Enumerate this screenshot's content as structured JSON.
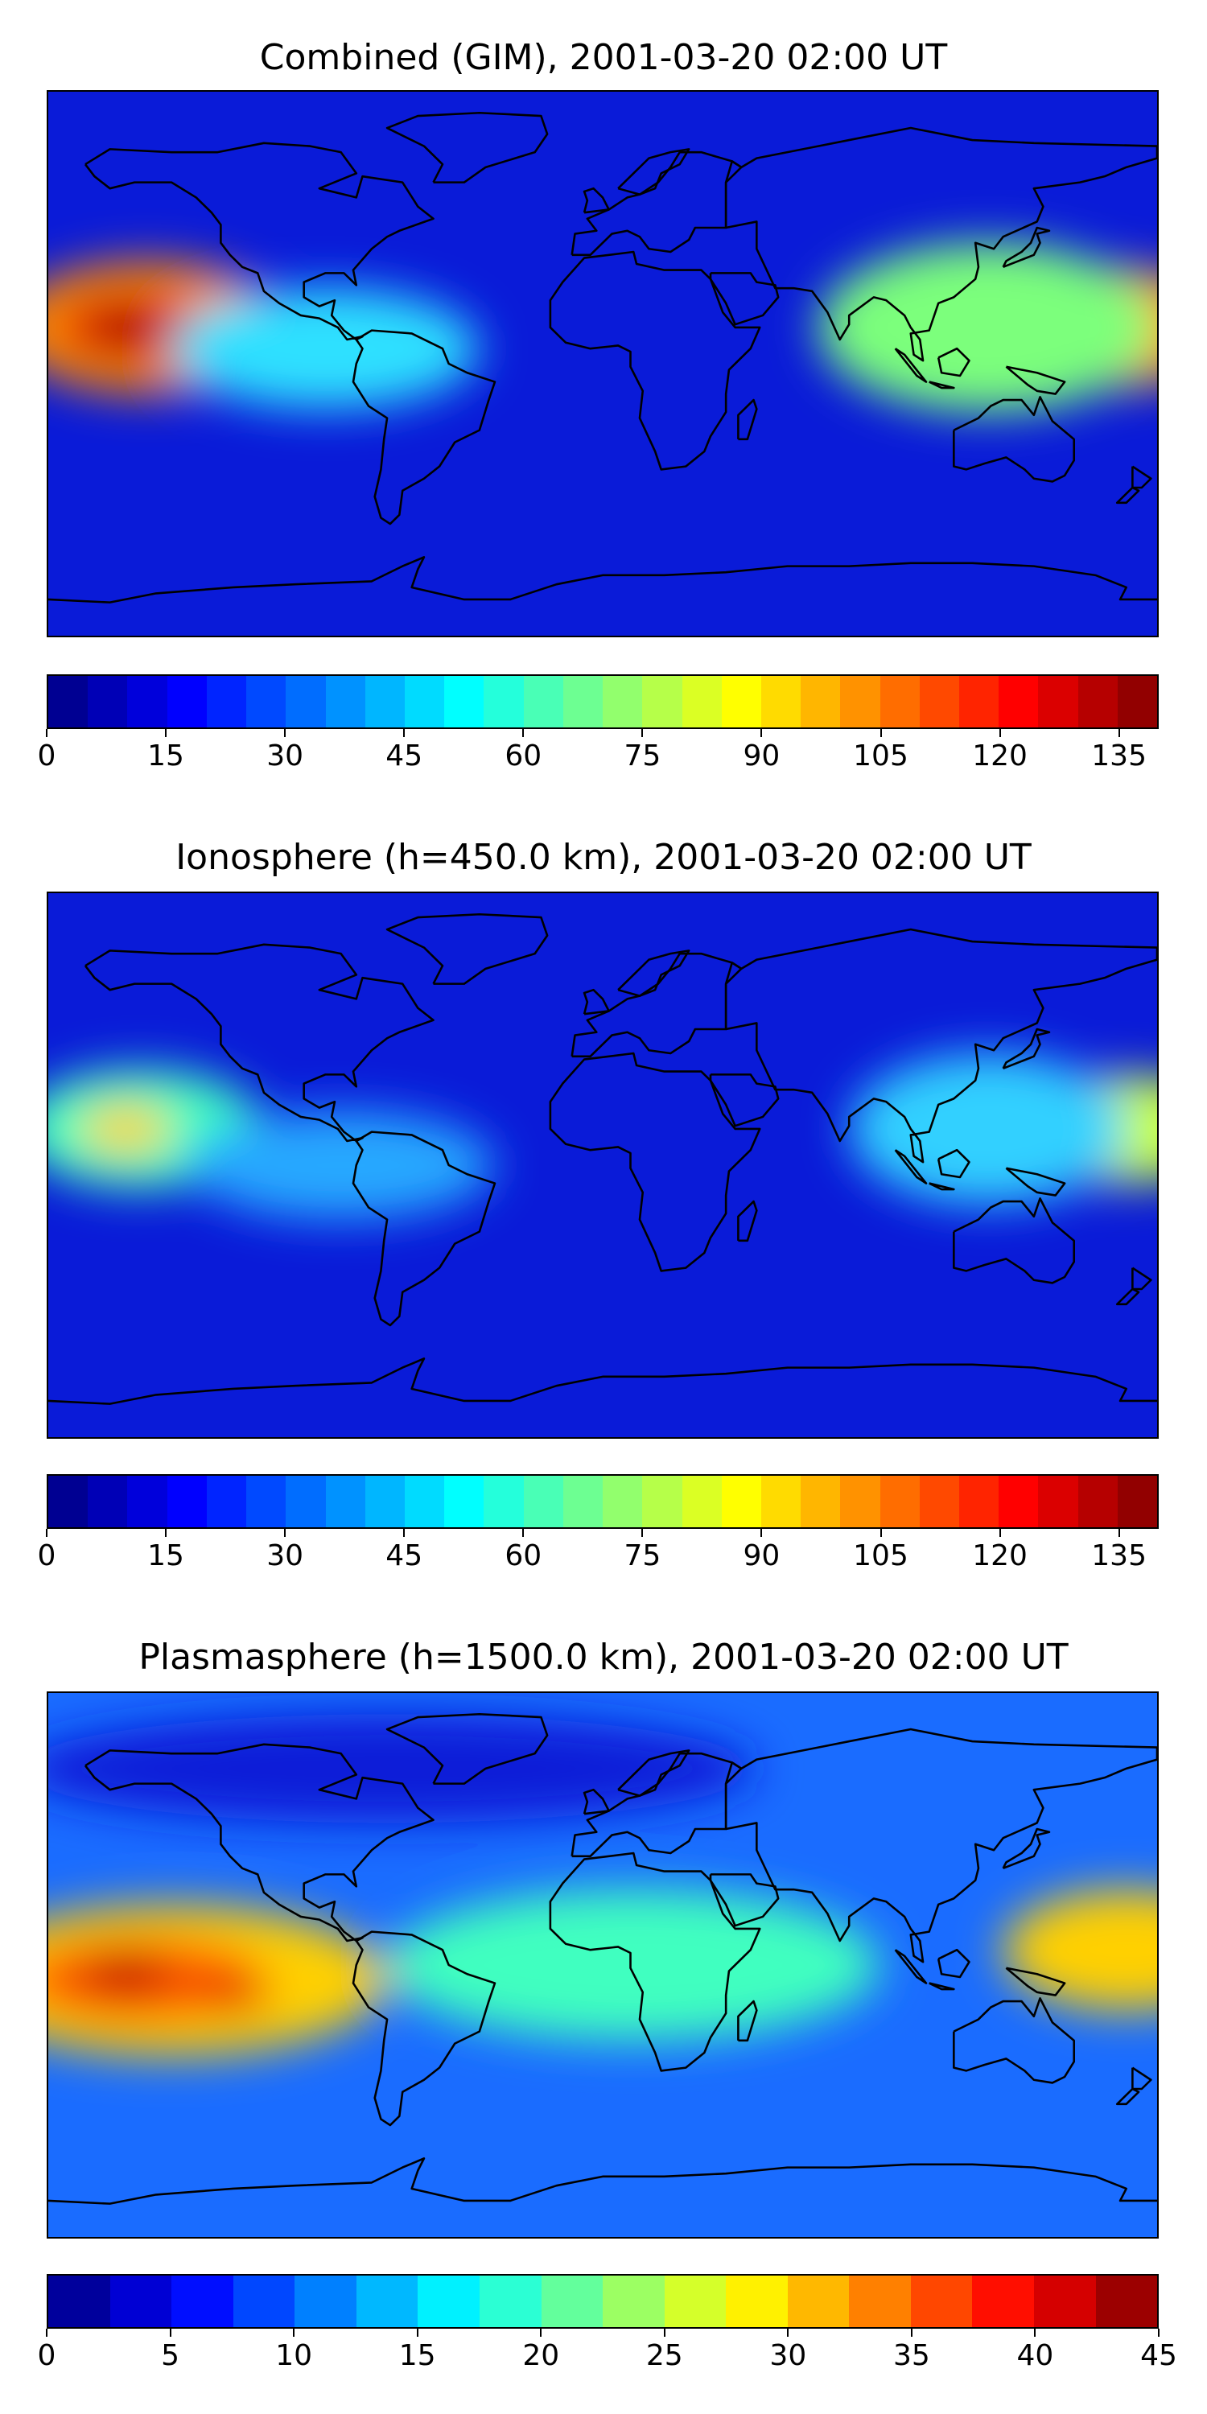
{
  "panels": [
    {
      "title": "Combined (GIM), 2001-03-20 02:00 UT",
      "colorbar": {
        "min": 0,
        "max": 140,
        "ticks": [
          "0",
          "15",
          "30",
          "45",
          "60",
          "75",
          "90",
          "105",
          "120",
          "135"
        ],
        "tick_values": [
          0,
          15,
          30,
          45,
          60,
          75,
          90,
          105,
          120,
          135
        ],
        "levels": 28
      },
      "background_color": "#0a1bd8",
      "blobs": [
        {
          "lon": -148,
          "lat": 12,
          "rlon": 45,
          "rlat": 22,
          "color": "#ff8c00"
        },
        {
          "lon": -152,
          "lat": 12,
          "rlon": 25,
          "rlat": 12,
          "color": "#e41a00"
        },
        {
          "lon": -155,
          "lat": 12,
          "rlon": 12,
          "rlat": 6,
          "color": "#9a0000"
        },
        {
          "lon": 165,
          "lat": 12,
          "rlon": 40,
          "rlat": 20,
          "color": "#ff9a00"
        },
        {
          "lon": 125,
          "lat": 12,
          "rlon": 55,
          "rlat": 28,
          "color": "#7bff7b"
        },
        {
          "lon": -90,
          "lat": 5,
          "rlon": 50,
          "rlat": 20,
          "color": "#2fe0ff"
        }
      ]
    },
    {
      "title": "Ionosphere  (h=450.0 km), 2001-03-20 02:00 UT",
      "colorbar": {
        "min": 0,
        "max": 140,
        "ticks": [
          "0",
          "15",
          "30",
          "45",
          "60",
          "75",
          "90",
          "105",
          "120",
          "135"
        ],
        "tick_values": [
          0,
          15,
          30,
          45,
          60,
          75,
          90,
          105,
          120,
          135
        ],
        "levels": 28
      },
      "background_color": "#0a1bd8",
      "blobs": [
        {
          "lon": -150,
          "lat": 12,
          "rlon": 40,
          "rlat": 20,
          "color": "#3fffc0"
        },
        {
          "lon": -155,
          "lat": 12,
          "rlon": 15,
          "rlat": 8,
          "color": "#ffd000"
        },
        {
          "lon": 170,
          "lat": 12,
          "rlon": 35,
          "rlat": 18,
          "color": "#c8ff3c"
        },
        {
          "lon": 125,
          "lat": 12,
          "rlon": 45,
          "rlat": 25,
          "color": "#32d0ff"
        },
        {
          "lon": -85,
          "lat": 0,
          "rlon": 50,
          "rlat": 18,
          "color": "#28a8ff"
        }
      ]
    },
    {
      "title": "Plasmasphere (h=1500.0 km), 2001-03-20 02:00 UT",
      "colorbar": {
        "min": 0,
        "max": 45,
        "ticks": [
          "0",
          "5",
          "10",
          "15",
          "20",
          "25",
          "30",
          "35",
          "40",
          "45"
        ],
        "tick_values": [
          0,
          5,
          10,
          15,
          20,
          25,
          30,
          35,
          40,
          45
        ],
        "levels": 18
      },
      "background_color": "#1a6cff",
      "blobs": [
        {
          "lon": -70,
          "lat": 65,
          "rlon": 120,
          "rlat": 18,
          "color": "#0a1bd8"
        },
        {
          "lon": -140,
          "lat": -5,
          "rlon": 70,
          "rlat": 25,
          "color": "#ffd000"
        },
        {
          "lon": -150,
          "lat": -5,
          "rlon": 40,
          "rlat": 14,
          "color": "#ff5a00"
        },
        {
          "lon": -155,
          "lat": -3,
          "rlon": 15,
          "rlat": 7,
          "color": "#c00000"
        },
        {
          "lon": -120,
          "lat": -10,
          "rlon": 12,
          "rlat": 6,
          "color": "#e41a00"
        },
        {
          "lon": 10,
          "lat": 0,
          "rlon": 80,
          "rlat": 25,
          "color": "#3fffc0"
        },
        {
          "lon": 170,
          "lat": 5,
          "rlon": 40,
          "rlat": 20,
          "color": "#ffd000"
        }
      ]
    }
  ]
}
